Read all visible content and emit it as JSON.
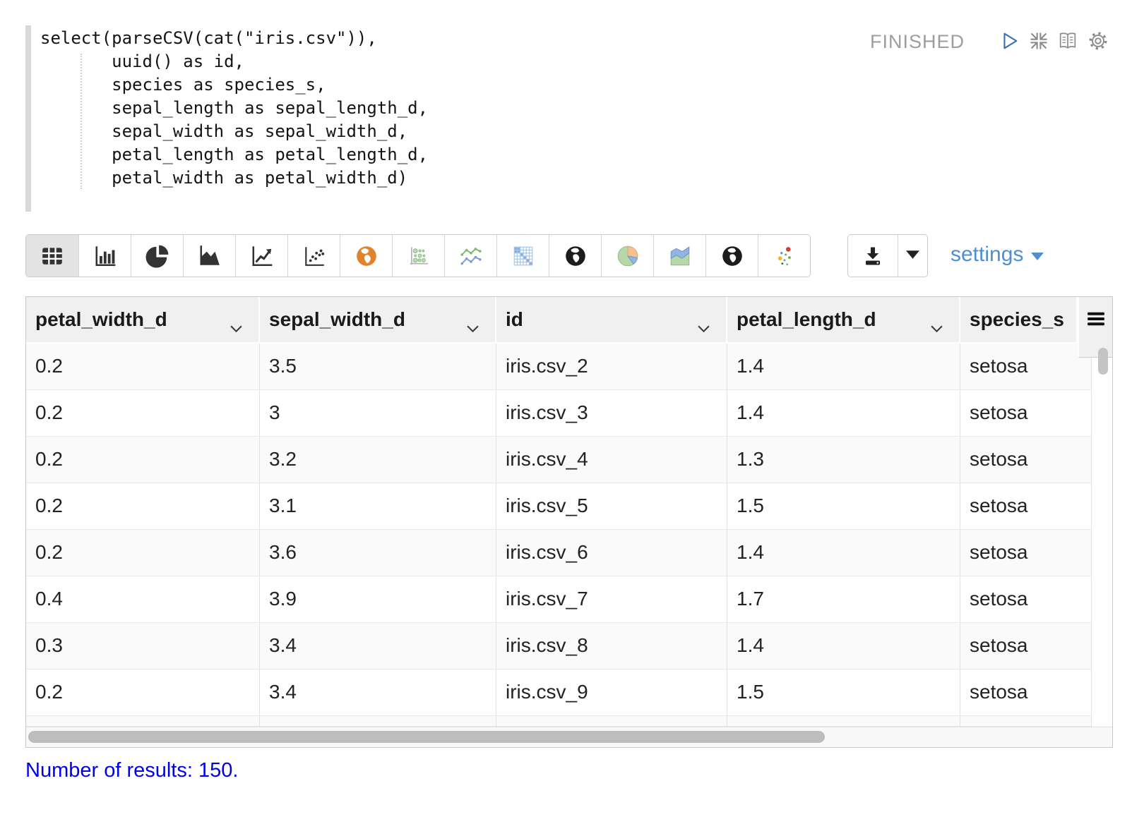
{
  "code": {
    "lines": [
      "select(parseCSV(cat(\"iris.csv\")),",
      "       uuid() as id,",
      "       species as species_s,",
      "       sepal_length as sepal_length_d,",
      "       sepal_width as sepal_width_d,",
      "       petal_length as petal_length_d,",
      "       petal_width as petal_width_d)"
    ]
  },
  "status_bar": {
    "status": "FINISHED",
    "icons": [
      "play-icon",
      "collapse-icon",
      "book-icon",
      "gear-icon"
    ]
  },
  "toolbar": {
    "chart_buttons": [
      {
        "name": "table",
        "icon": "table-icon",
        "active": true
      },
      {
        "name": "bar-chart",
        "icon": "bar-chart-icon",
        "active": false
      },
      {
        "name": "pie-chart",
        "icon": "pie-chart-icon",
        "active": false
      },
      {
        "name": "area-chart",
        "icon": "area-chart-icon",
        "active": false
      },
      {
        "name": "line-chart",
        "icon": "line-chart-icon",
        "active": false
      },
      {
        "name": "scatter-chart",
        "icon": "scatter-icon",
        "active": false
      },
      {
        "name": "map-orange",
        "icon": "globe-orange-icon",
        "active": false
      },
      {
        "name": "bubble-chart",
        "icon": "bubble-green-icon",
        "active": false
      },
      {
        "name": "multi-line-chart",
        "icon": "multi-line-icon",
        "active": false
      },
      {
        "name": "matrix-chart",
        "icon": "matrix-blue-icon",
        "active": false
      },
      {
        "name": "globe-map-1",
        "icon": "globe-black-icon",
        "active": false
      },
      {
        "name": "pie-color-chart",
        "icon": "pie-color-icon",
        "active": false
      },
      {
        "name": "stacked-area",
        "icon": "stacked-area-icon",
        "active": false
      },
      {
        "name": "globe-map-2",
        "icon": "globe-black-icon",
        "active": false
      },
      {
        "name": "scatter-color",
        "icon": "scatter-color-icon",
        "active": false
      }
    ],
    "download_icon": "download-icon",
    "settings_label": "settings"
  },
  "table": {
    "columns": [
      {
        "label": "petal_width_d",
        "sortable": true
      },
      {
        "label": "sepal_width_d",
        "sortable": true
      },
      {
        "label": "id",
        "sortable": true
      },
      {
        "label": "petal_length_d",
        "sortable": true
      },
      {
        "label": "species_s",
        "sortable": false
      }
    ],
    "rows": [
      [
        "0.2",
        "3.5",
        "iris.csv_2",
        "1.4",
        "setosa"
      ],
      [
        "0.2",
        "3",
        "iris.csv_3",
        "1.4",
        "setosa"
      ],
      [
        "0.2",
        "3.2",
        "iris.csv_4",
        "1.3",
        "setosa"
      ],
      [
        "0.2",
        "3.1",
        "iris.csv_5",
        "1.5",
        "setosa"
      ],
      [
        "0.2",
        "3.6",
        "iris.csv_6",
        "1.4",
        "setosa"
      ],
      [
        "0.4",
        "3.9",
        "iris.csv_7",
        "1.7",
        "setosa"
      ],
      [
        "0.3",
        "3.4",
        "iris.csv_8",
        "1.4",
        "setosa"
      ],
      [
        "0.2",
        "3.4",
        "iris.csv_9",
        "1.5",
        "setosa"
      ]
    ]
  },
  "footer": {
    "results_text": "Number of results: 150."
  },
  "colors": {
    "settings_link": "#4d90d0",
    "results_link": "#0000f0",
    "status_text": "#9e9e9e",
    "play_icon": "#3b73af",
    "orange_globe": "#e0832c",
    "header_bg": "#f0f0f0",
    "row_stripe": "#fafafa"
  }
}
